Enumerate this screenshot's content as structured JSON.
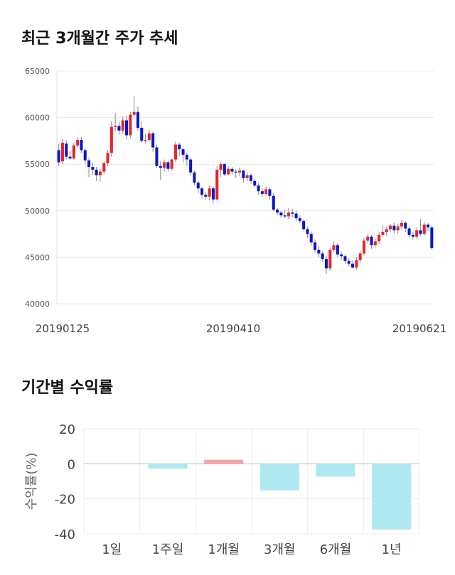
{
  "titles": {
    "price_trend": "최근 3개월간 주가 추세",
    "returns": "기간별 수익률"
  },
  "colors": {
    "up": "#e8232a",
    "down": "#0a16c8",
    "bar": "#aee9f2",
    "bar_pos": "#f5a3a5"
  },
  "chart_data": [
    {
      "type": "candlestick",
      "yticks": [
        65000,
        60000,
        55000,
        50000,
        45000,
        40000
      ],
      "ylim": [
        40000,
        65000
      ],
      "xticks": [
        "20190125",
        "20190410",
        "20190621"
      ],
      "grid": true,
      "candles": [
        [
          56500,
          55200,
          57200,
          54800
        ],
        [
          55300,
          57300,
          57700,
          55000
        ],
        [
          57200,
          55800,
          57600,
          55500
        ],
        [
          55800,
          55600,
          56400,
          55400
        ],
        [
          55600,
          57000,
          57300,
          55500
        ],
        [
          57000,
          57600,
          57900,
          56800
        ],
        [
          57600,
          56500,
          57900,
          56200
        ],
        [
          56500,
          55400,
          56700,
          55000
        ],
        [
          55400,
          54700,
          55700,
          53600
        ],
        [
          54700,
          54400,
          55100,
          53800
        ],
        [
          54400,
          53800,
          54700,
          53200
        ],
        [
          53800,
          54200,
          54500,
          53100
        ],
        [
          54200,
          55100,
          55300,
          53900
        ],
        [
          55100,
          56200,
          56500,
          54800
        ],
        [
          56200,
          59000,
          59600,
          55800
        ],
        [
          59000,
          59100,
          60500,
          58500
        ],
        [
          59100,
          58600,
          59600,
          58200
        ],
        [
          58600,
          59700,
          60100,
          58200
        ],
        [
          59700,
          58100,
          60200,
          57600
        ],
        [
          58100,
          60300,
          60600,
          57800
        ],
        [
          60300,
          60600,
          62300,
          60200
        ],
        [
          60600,
          58900,
          61200,
          58600
        ],
        [
          58900,
          57500,
          59500,
          57300
        ],
        [
          57500,
          57600,
          58200,
          57200
        ],
        [
          57600,
          58300,
          58700,
          57400
        ],
        [
          58300,
          56800,
          58500,
          56300
        ],
        [
          56800,
          54800,
          57100,
          54600
        ],
        [
          54800,
          54600,
          55300,
          53300
        ],
        [
          54600,
          55200,
          55500,
          54200
        ],
        [
          55200,
          54500,
          55400,
          54200
        ],
        [
          54500,
          55500,
          55600,
          54300
        ],
        [
          55500,
          57100,
          57400,
          55200
        ],
        [
          57100,
          56600,
          57300,
          55900
        ],
        [
          56600,
          56000,
          56700,
          55200
        ],
        [
          56000,
          55500,
          56200,
          54800
        ],
        [
          55500,
          54100,
          55700,
          53800
        ],
        [
          54100,
          53000,
          54300,
          52700
        ],
        [
          53000,
          52400,
          53200,
          51900
        ],
        [
          52400,
          51700,
          52600,
          51300
        ],
        [
          51700,
          51500,
          52000,
          51100
        ],
        [
          51500,
          52400,
          52700,
          51100
        ],
        [
          52400,
          51200,
          52600,
          50800
        ],
        [
          51200,
          54400,
          54800,
          51100
        ],
        [
          54400,
          55000,
          55200,
          53600
        ],
        [
          55000,
          53900,
          55100,
          53700
        ],
        [
          53900,
          54500,
          54800,
          53800
        ],
        [
          54500,
          54200,
          54700,
          53900
        ],
        [
          54200,
          54100,
          54500,
          53500
        ],
        [
          54100,
          54300,
          54600,
          53700
        ],
        [
          54300,
          53500,
          54400,
          53000
        ],
        [
          53500,
          53800,
          54100,
          53200
        ],
        [
          53800,
          53200,
          54000,
          52900
        ],
        [
          53200,
          52700,
          53400,
          52500
        ],
        [
          52700,
          52100,
          53000,
          51700
        ],
        [
          52100,
          51800,
          52400,
          51500
        ],
        [
          51800,
          52300,
          52600,
          51600
        ],
        [
          52300,
          51600,
          52500,
          51200
        ],
        [
          51600,
          50100,
          51900,
          49900
        ],
        [
          50100,
          49800,
          50300,
          49500
        ],
        [
          49800,
          49500,
          50000,
          49200
        ],
        [
          49500,
          49400,
          50100,
          49200
        ],
        [
          49400,
          49800,
          50300,
          49100
        ],
        [
          49800,
          49700,
          50200,
          49300
        ],
        [
          49700,
          49200,
          50000,
          48900
        ],
        [
          49200,
          48900,
          49500,
          48700
        ],
        [
          48900,
          48000,
          49100,
          47800
        ],
        [
          48000,
          47500,
          48300,
          47100
        ],
        [
          47500,
          46600,
          47800,
          46300
        ],
        [
          46600,
          45800,
          46900,
          45500
        ],
        [
          45800,
          45400,
          46200,
          45000
        ],
        [
          45400,
          44800,
          45700,
          44500
        ],
        [
          44800,
          43800,
          45100,
          43200
        ],
        [
          43800,
          45800,
          46000,
          43500
        ],
        [
          45800,
          46300,
          46700,
          45600
        ],
        [
          46300,
          45300,
          46500,
          45000
        ],
        [
          45300,
          45100,
          45600,
          44700
        ],
        [
          45100,
          44600,
          45300,
          44300
        ],
        [
          44600,
          44300,
          44900,
          44000
        ],
        [
          44300,
          43900,
          44600,
          43800
        ],
        [
          43900,
          44700,
          45000,
          43700
        ],
        [
          44700,
          45400,
          45700,
          44400
        ],
        [
          45400,
          46800,
          47100,
          45200
        ],
        [
          46800,
          47200,
          47500,
          46500
        ],
        [
          47200,
          46300,
          47400,
          45900
        ],
        [
          46300,
          46700,
          47000,
          46000
        ],
        [
          46700,
          47400,
          47700,
          46400
        ],
        [
          47400,
          47700,
          48400,
          47200
        ],
        [
          47700,
          48000,
          48300,
          47300
        ],
        [
          48000,
          48400,
          48600,
          47700
        ],
        [
          48400,
          47900,
          48700,
          47600
        ],
        [
          47900,
          48300,
          48600,
          47500
        ],
        [
          48300,
          48700,
          49000,
          48000
        ],
        [
          48700,
          48100,
          48900,
          47700
        ],
        [
          48100,
          47400,
          48300,
          47100
        ],
        [
          47400,
          47200,
          47700,
          46900
        ],
        [
          47200,
          47900,
          48200,
          47000
        ],
        [
          47900,
          47500,
          49100,
          47300
        ],
        [
          47500,
          48500,
          48800,
          47300
        ],
        [
          48500,
          48200,
          48700,
          47800
        ],
        [
          48200,
          46000,
          48400,
          45800
        ]
      ]
    },
    {
      "type": "bar",
      "ylabel": "수익률(%)",
      "ylim": [
        -40,
        20
      ],
      "yticks": [
        20,
        0,
        -20,
        -40
      ],
      "categories": [
        "1일",
        "1주일",
        "1개월",
        "3개월",
        "6개월",
        "1년"
      ],
      "values": [
        0,
        -2.8,
        2.3,
        -15.2,
        -7.3,
        -37.5
      ],
      "grid": true
    }
  ]
}
